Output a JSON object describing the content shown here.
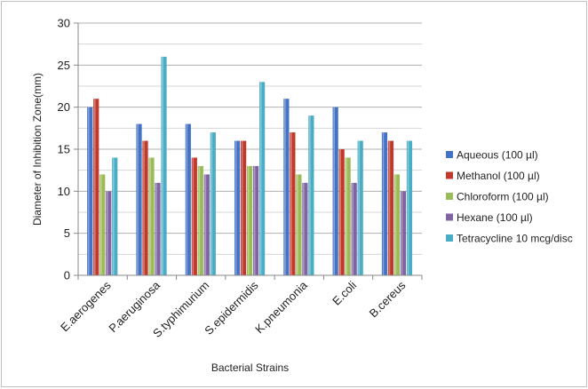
{
  "chart_data": {
    "type": "bar",
    "title": "",
    "xlabel": "Bacterial Strains",
    "ylabel": "Diameter of Inhibition Zone(mm)",
    "ylim": [
      0,
      30
    ],
    "yticks": [
      0,
      5,
      10,
      15,
      20,
      25,
      30
    ],
    "grid": "horizontal",
    "legend_position": "right",
    "categories": [
      "E.aerogenes",
      "P.aeruginosa",
      "S.typhimurium",
      "S.epidermidis",
      "K.pneumonia",
      "E.coli",
      "B.cereus"
    ],
    "series": [
      {
        "name": "Aqueous (100 µl)",
        "color": "#4472C4",
        "values": [
          20,
          18,
          18,
          16,
          21,
          20,
          17
        ]
      },
      {
        "name": "Methanol (100 µl)",
        "color": "#C0392B",
        "values": [
          21,
          16,
          14,
          16,
          17,
          15,
          16
        ]
      },
      {
        "name": "Chloroform (100 µl)",
        "color": "#9BBB59",
        "values": [
          12,
          14,
          13,
          13,
          12,
          14,
          12
        ]
      },
      {
        "name": "Hexane  (100 µl)",
        "color": "#8064A2",
        "values": [
          10,
          11,
          12,
          13,
          11,
          11,
          10
        ]
      },
      {
        "name": "Tetracycline 10 mcg/disc",
        "color": "#4BACC6",
        "values": [
          14,
          26,
          17,
          23,
          19,
          16,
          16
        ]
      }
    ]
  }
}
